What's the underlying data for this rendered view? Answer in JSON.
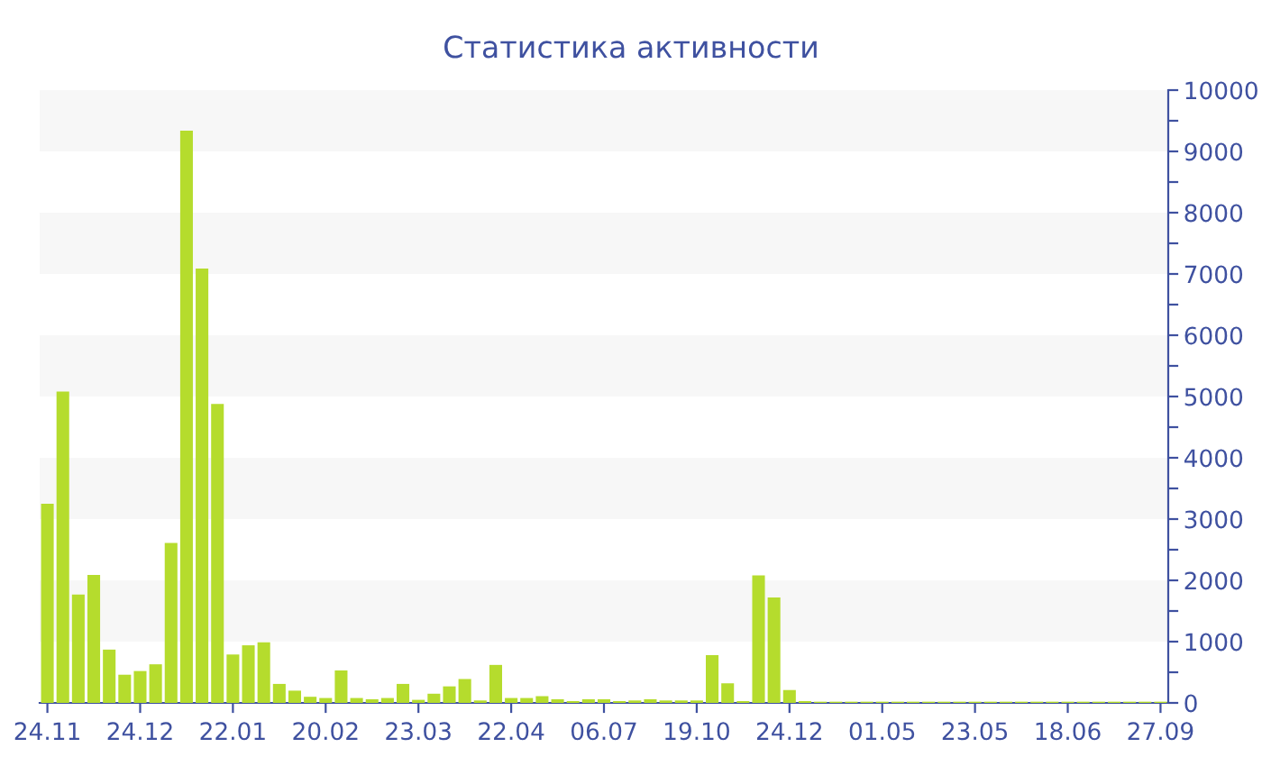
{
  "chart_data": {
    "type": "bar",
    "title": "Статистика активности",
    "categories": [
      "24.11",
      null,
      null,
      null,
      null,
      null,
      "24.12",
      null,
      null,
      null,
      null,
      null,
      "22.01",
      null,
      null,
      null,
      null,
      null,
      "20.02",
      null,
      null,
      null,
      null,
      null,
      "23.03",
      null,
      null,
      null,
      null,
      null,
      "22.04",
      null,
      null,
      null,
      null,
      null,
      "06.07",
      null,
      null,
      null,
      null,
      null,
      "19.10",
      null,
      null,
      null,
      null,
      null,
      "24.12",
      null,
      null,
      null,
      null,
      null,
      "01.05",
      null,
      null,
      null,
      null,
      null,
      "23.05",
      null,
      null,
      null,
      null,
      null,
      "18.06",
      null,
      null,
      null,
      null,
      null,
      "27.09"
    ],
    "values": [
      3250,
      5080,
      1770,
      2090,
      870,
      460,
      520,
      630,
      2610,
      9340,
      7090,
      4880,
      790,
      940,
      990,
      310,
      200,
      100,
      80,
      530,
      80,
      60,
      80,
      310,
      50,
      150,
      270,
      390,
      40,
      620,
      80,
      80,
      110,
      60,
      30,
      60,
      60,
      30,
      40,
      60,
      40,
      40,
      40,
      780,
      320,
      30,
      2080,
      1720,
      210,
      30,
      20,
      20,
      20,
      20,
      20,
      20,
      20,
      20,
      20,
      20,
      20,
      20,
      20,
      20,
      20,
      20,
      20,
      20,
      20,
      20,
      20,
      20,
      20
    ],
    "color": "#b5dc2d",
    "ylim": [
      0,
      10000
    ],
    "yticks": [
      0,
      {
        "value": 500,
        "label": null
      },
      1000,
      {
        "value": 1500,
        "label": null
      },
      2000,
      {
        "value": 2500,
        "label": null
      },
      3000,
      {
        "value": 3500,
        "label": null
      },
      4000,
      {
        "value": 4500,
        "label": null
      },
      5000,
      {
        "value": 5500,
        "label": null
      },
      6000,
      {
        "value": 6500,
        "label": null
      },
      7000,
      {
        "value": 7500,
        "label": null
      },
      8000,
      {
        "value": 8500,
        "label": null
      },
      9000,
      {
        "value": 9500,
        "label": null
      },
      10000
    ],
    "bands": [
      {
        "axis": "y",
        "from": 1000,
        "to": 2000,
        "color": "#f7f7f7"
      },
      {
        "axis": "y",
        "from": 3000,
        "to": 4000,
        "color": "#f7f7f7"
      },
      {
        "axis": "y",
        "from": 5000,
        "to": 6000,
        "color": "#f7f7f7"
      },
      {
        "axis": "y",
        "from": 7000,
        "to": 8000,
        "color": "#f7f7f7"
      },
      {
        "axis": "y",
        "from": 9000,
        "to": 10000,
        "color": "#f7f7f7"
      }
    ],
    "grid": false,
    "legend": false
  }
}
